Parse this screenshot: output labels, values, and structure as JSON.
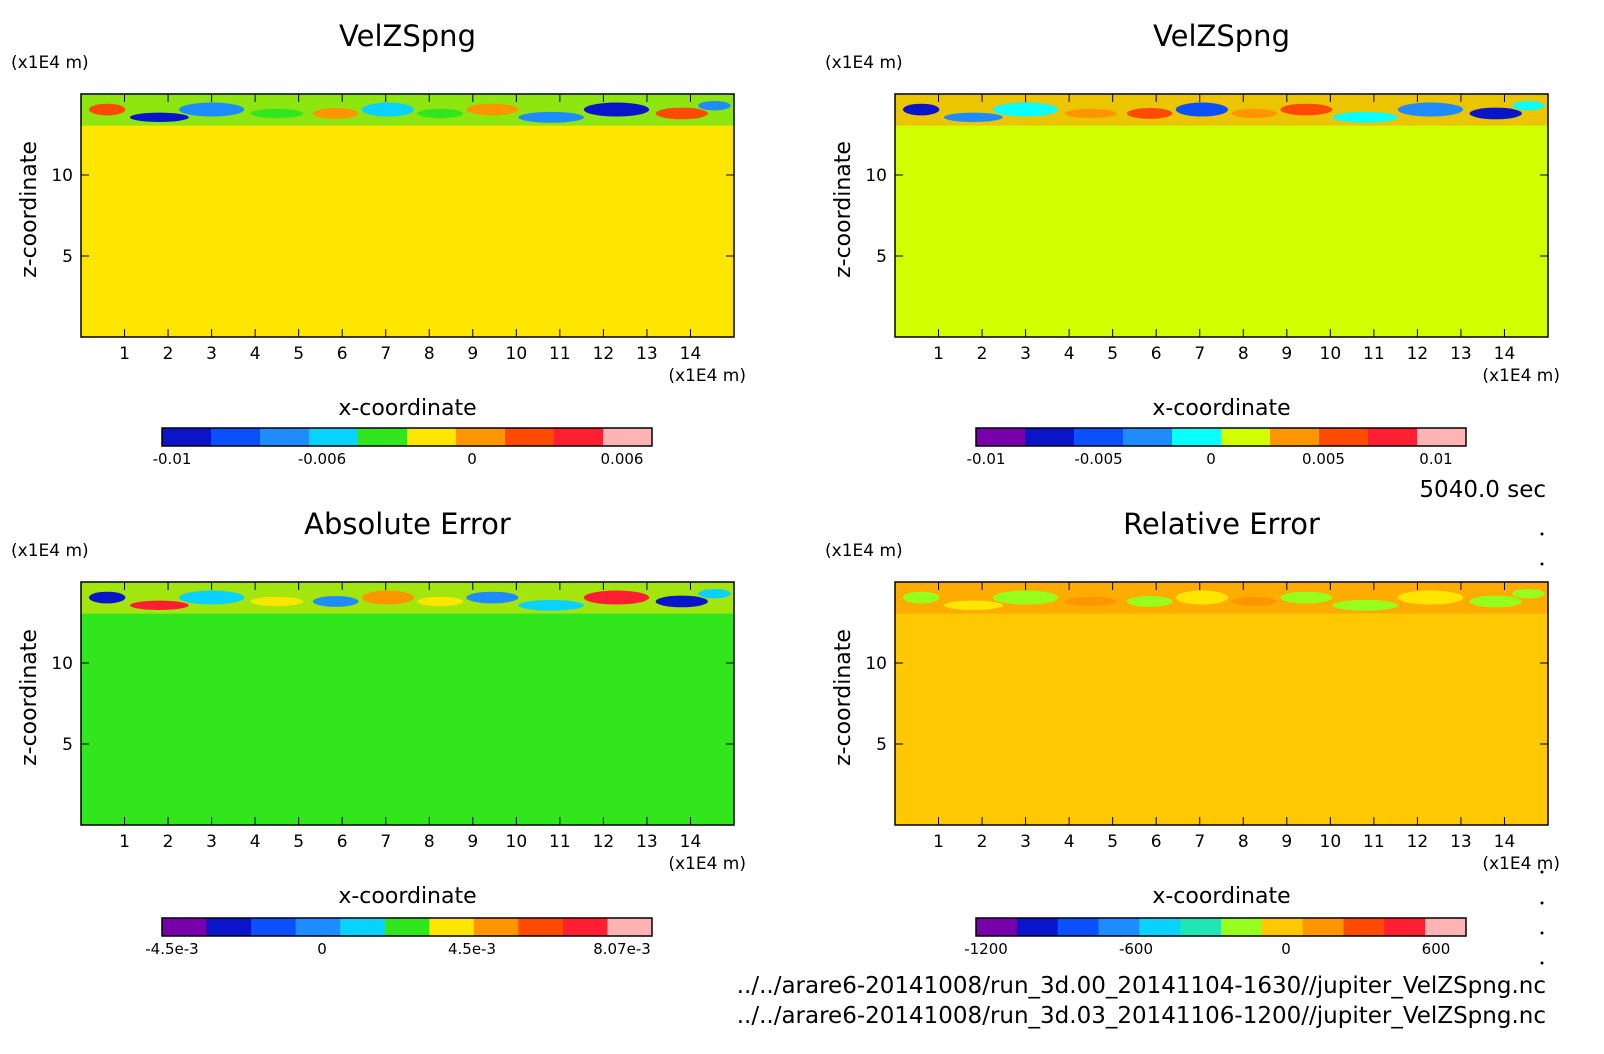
{
  "footer": {
    "time": "5040.0 sec",
    "files": [
      "../../arare6-20141008/run_3d.00_20141104-1630//jupiter_VelZSpng.nc",
      "../../arare6-20141008/run_3d.03_20141106-1200//jupiter_VelZSpng.nc"
    ]
  },
  "chart_data": [
    {
      "type": "heatmap",
      "title": "VelZSpng",
      "xlabel": "x-coordinate",
      "ylabel": "z-coordinate",
      "x_unit": "(x1E4 m)",
      "y_unit": "(x1E4 m)",
      "xlim": [
        0,
        15
      ],
      "ylim": [
        0,
        15
      ],
      "x_ticks": [
        "1",
        "2",
        "3",
        "4",
        "5",
        "6",
        "7",
        "8",
        "9",
        "10",
        "11",
        "12",
        "13",
        "14"
      ],
      "y_ticks": [
        "5",
        "10"
      ],
      "background_color": "#ffe600",
      "colorbar": {
        "colors": [
          "#0a14c8",
          "#0a50ff",
          "#1e8cff",
          "#0ad2ff",
          "#32e61e",
          "#ffe600",
          "#ff9600",
          "#ff4b00",
          "#ff1e32",
          "#ffb4b4"
        ],
        "ticks": [
          "-0.01",
          "-0.006",
          "0",
          "0.006"
        ]
      }
    },
    {
      "type": "heatmap",
      "title": "VelZSpng",
      "xlabel": "x-coordinate",
      "ylabel": "z-coordinate",
      "x_unit": "(x1E4 m)",
      "y_unit": "(x1E4 m)",
      "xlim": [
        0,
        15
      ],
      "ylim": [
        0,
        15
      ],
      "x_ticks": [
        "1",
        "2",
        "3",
        "4",
        "5",
        "6",
        "7",
        "8",
        "9",
        "10",
        "11",
        "12",
        "13",
        "14"
      ],
      "y_ticks": [
        "5",
        "10"
      ],
      "background_color": "#d2ff00",
      "colorbar": {
        "colors": [
          "#7800aa",
          "#0a14c8",
          "#0a50ff",
          "#1e8cff",
          "#0affff",
          "#d2ff00",
          "#ff9600",
          "#ff4b00",
          "#ff1e32",
          "#ffb4b4"
        ],
        "ticks": [
          "-0.01",
          "-0.005",
          "0",
          "0.005",
          "0.01"
        ]
      }
    },
    {
      "type": "heatmap",
      "title": "Absolute Error",
      "xlabel": "x-coordinate",
      "ylabel": "z-coordinate",
      "x_unit": "(x1E4 m)",
      "y_unit": "(x1E4 m)",
      "xlim": [
        0,
        15
      ],
      "ylim": [
        0,
        15
      ],
      "x_ticks": [
        "1",
        "2",
        "3",
        "4",
        "5",
        "6",
        "7",
        "8",
        "9",
        "10",
        "11",
        "12",
        "13",
        "14"
      ],
      "y_ticks": [
        "5",
        "10"
      ],
      "background_color": "#32e61e",
      "colorbar": {
        "colors": [
          "#7800aa",
          "#0a14c8",
          "#0a50ff",
          "#1e8cff",
          "#0ad2ff",
          "#32e61e",
          "#ffe600",
          "#ff9600",
          "#ff4b00",
          "#ff1e32",
          "#ffb4b4"
        ],
        "ticks": [
          "-4.5e-3",
          "0",
          "4.5e-3",
          "8.07e-3"
        ]
      }
    },
    {
      "type": "heatmap",
      "title": "Relative Error",
      "xlabel": "x-coordinate",
      "ylabel": "z-coordinate",
      "x_unit": "(x1E4 m)",
      "y_unit": "(x1E4 m)",
      "xlim": [
        0,
        15
      ],
      "ylim": [
        0,
        15
      ],
      "x_ticks": [
        "1",
        "2",
        "3",
        "4",
        "5",
        "6",
        "7",
        "8",
        "9",
        "10",
        "11",
        "12",
        "13",
        "14"
      ],
      "y_ticks": [
        "5",
        "10"
      ],
      "background_color": "#ffc800",
      "colorbar": {
        "colors": [
          "#7800aa",
          "#0a14c8",
          "#0a50ff",
          "#1e8cff",
          "#0ad2ff",
          "#1ee6b4",
          "#96ff1e",
          "#ffc800",
          "#ff9600",
          "#ff4b00",
          "#ff1e32",
          "#ffb4b4"
        ],
        "ticks": [
          "-1200",
          "-600",
          "0",
          "600"
        ]
      }
    }
  ]
}
